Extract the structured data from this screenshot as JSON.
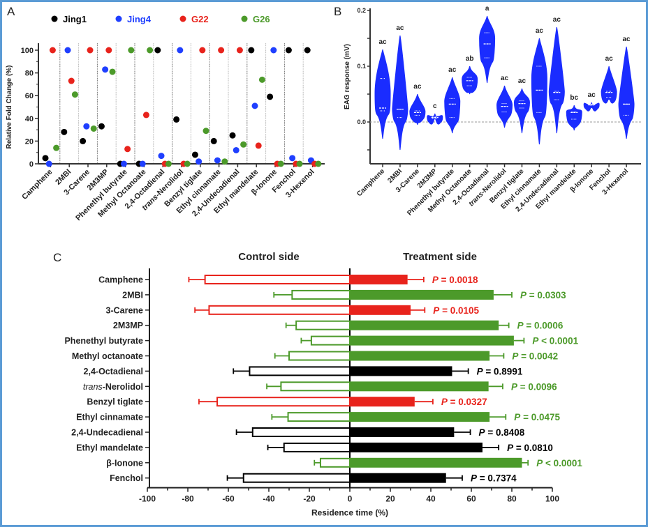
{
  "figure": {
    "border_color": "#5b9bd5",
    "panel_labels": [
      "A",
      "B",
      "C"
    ]
  },
  "chart_data": [
    {
      "panel": "A",
      "type": "scatter",
      "title": "",
      "xlabel": "",
      "ylabel": "Relative Fold Change (%)",
      "ylim": [
        0,
        100
      ],
      "yticks": [
        0,
        20,
        40,
        60,
        80,
        100
      ],
      "categories": [
        "Camphene",
        "2MBI",
        "3-Carene",
        "2M3MP",
        "Phenethyl butyrate",
        "Methyl Octanoate",
        "2,4-Octadienal",
        "trans-Nerolidol",
        "Benzyl tiglate",
        "Ethyl cinnamate",
        "2,4-Undecadienal",
        "Ethyl mandelate",
        "β-Ionone",
        "Fenchol",
        "3-Hexenol"
      ],
      "legend_position": "top",
      "series": [
        {
          "name": "Jing1",
          "color": "#000000",
          "values": [
            5,
            28,
            20,
            33,
            0,
            0,
            100,
            39,
            8,
            20,
            25,
            100,
            59,
            100,
            100
          ]
        },
        {
          "name": "Jing4",
          "color": "#1f3fff",
          "values": [
            0,
            100,
            33,
            83,
            0,
            0,
            7,
            100,
            2,
            3,
            12,
            51,
            100,
            5,
            3
          ]
        },
        {
          "name": "G22",
          "color": "#e8231c",
          "values": [
            100,
            73,
            100,
            100,
            13,
            43,
            0,
            0,
            100,
            100,
            100,
            16,
            0,
            0,
            0
          ]
        },
        {
          "name": "G26",
          "color": "#4c9a2a",
          "values": [
            14,
            61,
            31,
            81,
            100,
            100,
            0,
            0,
            29,
            2,
            17,
            74,
            0,
            0,
            0
          ]
        }
      ]
    },
    {
      "panel": "B",
      "type": "violin",
      "xlabel": "",
      "ylabel": "EAG response (mV)",
      "ylim": [
        -0.05,
        0.2
      ],
      "yticks": [
        0.0,
        0.1,
        0.2
      ],
      "yticks_labeled": [
        "0.0",
        "0.1",
        "0.2"
      ],
      "color": "#1a2cff",
      "reference_line": 0.0,
      "categories": [
        "Camphene",
        "2MBI",
        "3-Carene",
        "2M3MP",
        "Phenethyl butyrate",
        "Methyl Octanoate",
        "2,4-Octadienal",
        "trans-Nerolidol",
        "Benzyl tiglate",
        "Ethyl cinnamate",
        "2,4-Undecadienal",
        "Ethyl mandelate",
        "β-Ionone",
        "Fenchol",
        "3-Hexenol"
      ],
      "series": [
        {
          "name": "EAG",
          "min": [
            -0.03,
            -0.05,
            -0.005,
            0.005,
            -0.02,
            0.05,
            0.07,
            -0.01,
            -0.02,
            -0.04,
            -0.02,
            -0.015,
            0.025,
            0.04,
            -0.03
          ],
          "max": [
            0.13,
            0.155,
            0.05,
            0.015,
            0.08,
            0.1,
            0.19,
            0.065,
            0.06,
            0.15,
            0.17,
            0.03,
            0.035,
            0.1,
            0.135
          ],
          "q1": [
            0.02,
            0.008,
            0.012,
            0.006,
            0.008,
            0.065,
            0.115,
            0.018,
            0.025,
            0.017,
            0.04,
            0.005,
            0.03,
            0.044,
            0.012
          ],
          "median": [
            0.025,
            0.023,
            0.017,
            0.008,
            0.032,
            0.074,
            0.14,
            0.028,
            0.033,
            0.057,
            0.053,
            0.017,
            0.031,
            0.053,
            0.032
          ],
          "q3": [
            0.078,
            0.023,
            0.02,
            0.01,
            0.042,
            0.08,
            0.16,
            0.033,
            0.038,
            0.1,
            0.055,
            0.018,
            0.032,
            0.055,
            0.032
          ]
        }
      ],
      "significance_letters": [
        "ac",
        "ac",
        "ac",
        "c",
        "ac",
        "ab",
        "a",
        "ac",
        "ac",
        "ac",
        "ac",
        "bc",
        "ac",
        "ac",
        "ac"
      ]
    },
    {
      "panel": "C",
      "type": "bar",
      "orientation": "horizontal",
      "xlabel": "Residence time (%)",
      "ylabel": "",
      "xlim": [
        -100,
        100
      ],
      "xticks": [
        -100,
        -80,
        -60,
        -40,
        -20,
        0,
        20,
        40,
        60,
        80,
        100
      ],
      "side_titles": {
        "left": "Control side",
        "right": "Treatment side"
      },
      "categories": [
        "Camphene",
        "2MBI",
        "3-Carene",
        "2M3MP",
        "Phenethyl butyrate",
        "Methyl octanoate",
        "2,4-Octadienal",
        "trans-Nerolidol",
        "Benzyl tiglate",
        "Ethyl cinnamate",
        "2,4-Undecadienal",
        "Ethyl mandelate",
        "β-Ionone",
        "Fenchol"
      ],
      "category_italic_prefix": [
        "",
        "",
        "",
        "",
        "",
        "",
        "",
        "trans",
        "",
        "",
        "",
        "",
        "",
        ""
      ],
      "colors": {
        "red": "#e8231c",
        "green": "#4c9a2a",
        "black": "#000000"
      },
      "row_color": [
        "red",
        "green",
        "red",
        "green",
        "green",
        "green",
        "black",
        "green",
        "red",
        "green",
        "black",
        "black",
        "green",
        "black"
      ],
      "series": [
        {
          "name": "Control side",
          "values": [
            -71.5,
            -28.5,
            -69.5,
            -26.5,
            -19,
            -30,
            -49.5,
            -34,
            -65.5,
            -30.5,
            -48,
            -32.5,
            -14.5,
            -52.5
          ],
          "error": [
            8,
            9,
            7,
            5,
            5,
            7,
            8,
            7,
            9,
            8,
            8,
            8,
            3,
            8
          ]
        },
        {
          "name": "Treatment side",
          "values": [
            28.5,
            71,
            30,
            73.5,
            81,
            69,
            50.5,
            68.5,
            32,
            69,
            51.5,
            65.5,
            85,
            47.5
          ],
          "error": [
            8,
            9,
            7,
            5,
            5,
            7,
            8,
            7,
            9,
            8,
            8,
            8,
            3,
            8
          ]
        }
      ],
      "p_values": [
        "P = 0.0018",
        "P = 0.0303",
        "P = 0.0105",
        "P = 0.0006",
        "P < 0.0001",
        "P = 0.0042",
        "P = 0.8991",
        "P = 0.0096",
        "P = 0.0327",
        "P = 0.0475",
        "P = 0.8408",
        "P = 0.0810",
        "P < 0.0001",
        "P = 0.7374"
      ]
    }
  ]
}
